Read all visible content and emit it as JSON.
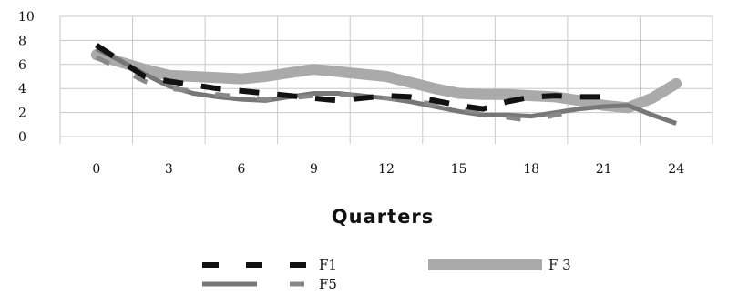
{
  "chart_data": {
    "type": "line",
    "title": "",
    "xlabel": "Quarters",
    "ylabel": "",
    "x_ticks": [
      "0",
      "3",
      "6",
      "9",
      "12",
      "15",
      "18",
      "21",
      "24"
    ],
    "y_ticks": [
      "0",
      "2",
      "4",
      "6",
      "8",
      "10"
    ],
    "xlim": [
      -1.5,
      25.5
    ],
    "ylim": [
      0,
      10
    ],
    "grid": true,
    "legend_position": "bottom",
    "series": [
      {
        "name": "F1",
        "color": "#111111",
        "style": "long-dash",
        "x": [
          0,
          1,
          2,
          3,
          4,
          5,
          6,
          7,
          8,
          9,
          10,
          11,
          12,
          13,
          14,
          15,
          16,
          17,
          18,
          19,
          20,
          21
        ],
        "y": [
          7.6,
          6.3,
          5.0,
          4.6,
          4.3,
          4.0,
          3.8,
          3.6,
          3.4,
          3.2,
          3.0,
          3.2,
          3.4,
          3.3,
          3.0,
          2.6,
          2.3,
          2.9,
          3.3,
          3.4,
          3.3,
          3.3
        ]
      },
      {
        "name": "F3",
        "color": "#aaaaaa",
        "style": "thick",
        "x": [
          0,
          1,
          2,
          3,
          4,
          5,
          6,
          7,
          8,
          9,
          10,
          11,
          12,
          13,
          14,
          15,
          16,
          17,
          18,
          19,
          20,
          21,
          22,
          23,
          24
        ],
        "y": [
          6.8,
          6.2,
          5.6,
          5.1,
          5.0,
          4.9,
          4.8,
          5.0,
          5.3,
          5.6,
          5.4,
          5.2,
          5.0,
          4.5,
          4.0,
          3.6,
          3.5,
          3.5,
          3.4,
          3.3,
          3.0,
          2.6,
          2.4,
          3.2,
          4.4
        ]
      },
      {
        "name": "",
        "color": "#777777",
        "style": "solid",
        "x": [
          0,
          1,
          2,
          3,
          4,
          5,
          6,
          7,
          8,
          9,
          10,
          11,
          12,
          13,
          14,
          15,
          16,
          17,
          18,
          19,
          20,
          21,
          22,
          23,
          24
        ],
        "y": [
          7.3,
          6.3,
          5.2,
          4.2,
          3.6,
          3.3,
          3.1,
          3.0,
          3.3,
          3.6,
          3.6,
          3.4,
          3.2,
          2.9,
          2.5,
          2.1,
          1.8,
          1.8,
          1.7,
          2.0,
          2.3,
          2.5,
          2.6,
          1.8,
          1.1
        ]
      },
      {
        "name": "F5",
        "color": "#888888",
        "style": "dash",
        "x": [
          0,
          1,
          2,
          3,
          4,
          5,
          6,
          7,
          8,
          9,
          10,
          11,
          12,
          13,
          14,
          15,
          16,
          17,
          18,
          19,
          20
        ],
        "y": [
          6.6,
          5.6,
          4.6,
          4.0,
          3.8,
          3.5,
          3.3,
          3.1,
          3.2,
          3.4,
          3.5,
          3.4,
          3.2,
          3.0,
          2.7,
          2.3,
          2.0,
          1.6,
          1.3,
          1.8,
          2.1
        ]
      }
    ],
    "legend": [
      {
        "label": "F1",
        "series": 0
      },
      {
        "label": "F 3",
        "series": 1
      },
      {
        "label": "",
        "series": 2
      },
      {
        "label": "F5",
        "series": 3
      }
    ]
  }
}
